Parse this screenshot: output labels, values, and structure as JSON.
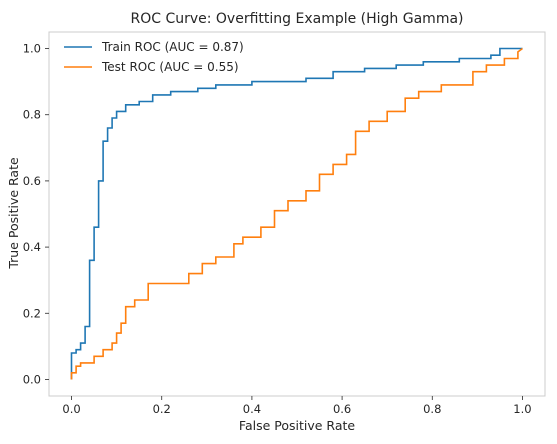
{
  "chart_data": {
    "type": "line",
    "title": "ROC Curve: Overfitting Example (High Gamma)",
    "xlabel": "False Positive Rate",
    "ylabel": "True Positive Rate",
    "xlim": [
      -0.05,
      1.05
    ],
    "ylim": [
      -0.05,
      1.05
    ],
    "grid": false,
    "legend_position": "top-left",
    "x_ticks": [
      "0.0",
      "0.2",
      "0.4",
      "0.6",
      "0.8",
      "1.0"
    ],
    "y_ticks": [
      "0.0",
      "0.2",
      "0.4",
      "0.6",
      "0.8",
      "1.0"
    ],
    "series": [
      {
        "name": "Train ROC (AUC = 0.87)",
        "color": "#1f77b4",
        "x": [
          0.0,
          0.0,
          0.01,
          0.01,
          0.02,
          0.02,
          0.03,
          0.03,
          0.04,
          0.04,
          0.05,
          0.05,
          0.06,
          0.06,
          0.07,
          0.07,
          0.08,
          0.08,
          0.09,
          0.09,
          0.1,
          0.1,
          0.12,
          0.12,
          0.15,
          0.15,
          0.18,
          0.18,
          0.22,
          0.22,
          0.28,
          0.28,
          0.32,
          0.32,
          0.4,
          0.4,
          0.52,
          0.52,
          0.58,
          0.58,
          0.65,
          0.65,
          0.72,
          0.72,
          0.78,
          0.78,
          0.86,
          0.86,
          0.93,
          0.93,
          0.95,
          0.95,
          1.0
        ],
        "y": [
          0.0,
          0.08,
          0.08,
          0.09,
          0.09,
          0.11,
          0.11,
          0.16,
          0.16,
          0.36,
          0.36,
          0.46,
          0.46,
          0.6,
          0.6,
          0.72,
          0.72,
          0.76,
          0.76,
          0.79,
          0.79,
          0.81,
          0.81,
          0.83,
          0.83,
          0.84,
          0.84,
          0.86,
          0.86,
          0.87,
          0.87,
          0.88,
          0.88,
          0.89,
          0.89,
          0.9,
          0.9,
          0.91,
          0.91,
          0.93,
          0.93,
          0.94,
          0.94,
          0.95,
          0.95,
          0.96,
          0.96,
          0.97,
          0.97,
          0.98,
          0.98,
          1.0,
          1.0
        ]
      },
      {
        "name": "Test ROC (AUC = 0.55)",
        "color": "#ff7f0e",
        "x": [
          0.0,
          0.0,
          0.01,
          0.01,
          0.02,
          0.02,
          0.05,
          0.05,
          0.07,
          0.07,
          0.09,
          0.09,
          0.1,
          0.1,
          0.11,
          0.11,
          0.12,
          0.12,
          0.14,
          0.14,
          0.17,
          0.17,
          0.26,
          0.26,
          0.29,
          0.29,
          0.32,
          0.32,
          0.36,
          0.36,
          0.38,
          0.38,
          0.42,
          0.42,
          0.45,
          0.45,
          0.48,
          0.48,
          0.52,
          0.52,
          0.55,
          0.55,
          0.58,
          0.58,
          0.61,
          0.61,
          0.63,
          0.63,
          0.66,
          0.66,
          0.7,
          0.7,
          0.74,
          0.74,
          0.77,
          0.77,
          0.82,
          0.82,
          0.89,
          0.89,
          0.92,
          0.92,
          0.96,
          0.96,
          0.99,
          0.99,
          1.0
        ],
        "y": [
          0.0,
          0.02,
          0.02,
          0.04,
          0.04,
          0.05,
          0.05,
          0.07,
          0.07,
          0.09,
          0.09,
          0.11,
          0.11,
          0.14,
          0.14,
          0.17,
          0.17,
          0.22,
          0.22,
          0.24,
          0.24,
          0.29,
          0.29,
          0.32,
          0.32,
          0.35,
          0.35,
          0.37,
          0.37,
          0.41,
          0.41,
          0.43,
          0.43,
          0.46,
          0.46,
          0.51,
          0.51,
          0.54,
          0.54,
          0.57,
          0.57,
          0.62,
          0.62,
          0.65,
          0.65,
          0.68,
          0.68,
          0.75,
          0.75,
          0.78,
          0.78,
          0.81,
          0.81,
          0.85,
          0.85,
          0.87,
          0.87,
          0.89,
          0.89,
          0.93,
          0.93,
          0.95,
          0.95,
          0.97,
          0.97,
          0.99,
          1.0
        ]
      }
    ]
  }
}
